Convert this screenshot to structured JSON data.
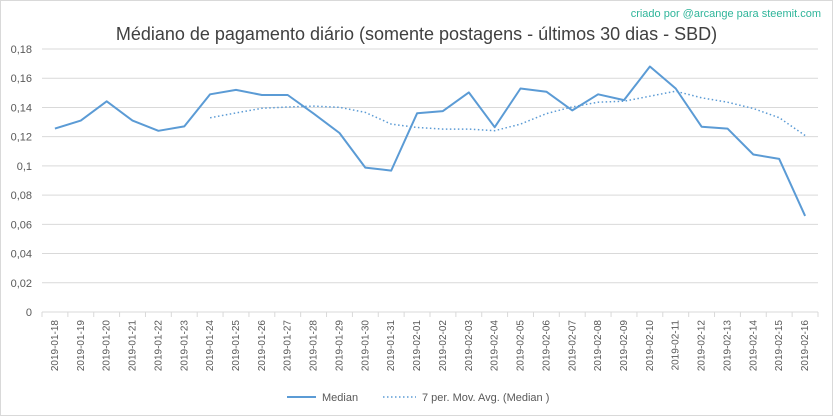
{
  "credit": "criado por @arcange para steemit.com",
  "colors": {
    "line": "#5b9bd5",
    "grid": "#d9d9d9",
    "text": "#595959",
    "credit": "#2fb59a"
  },
  "chart_data": {
    "type": "line",
    "title": "Médiano de pagamento diário (somente postagens - últimos 30 dias - SBD)",
    "xlabel": "",
    "ylabel": "",
    "ylim": [
      0,
      0.18
    ],
    "y_ticks": [
      "0",
      "0,02",
      "0,04",
      "0,06",
      "0,08",
      "0,1",
      "0,12",
      "0,14",
      "0,16",
      "0,18"
    ],
    "grid": true,
    "legend_position": "bottom",
    "categories": [
      "2019-01-18",
      "2019-01-19",
      "2019-01-20",
      "2019-01-21",
      "2019-01-22",
      "2019-01-23",
      "2019-01-24",
      "2019-01-25",
      "2019-01-26",
      "2019-01-27",
      "2019-01-28",
      "2019-01-29",
      "2019-01-30",
      "2019-01-31",
      "2019-02-01",
      "2019-02-02",
      "2019-02-03",
      "2019-02-04",
      "2019-02-05",
      "2019-02-06",
      "2019-02-07",
      "2019-02-08",
      "2019-02-09",
      "2019-02-10",
      "2019-02-11",
      "2019-02-12",
      "2019-02-13",
      "2019-02-14",
      "2019-02-15",
      "2019-02-16"
    ],
    "series": [
      {
        "name": "Median",
        "style": "solid",
        "values": [
          0.1255,
          0.131,
          0.1442,
          0.131,
          0.124,
          0.127,
          0.149,
          0.152,
          0.1485,
          0.1485,
          0.1358,
          0.1225,
          0.0988,
          0.0968,
          0.136,
          0.1375,
          0.1503,
          0.1265,
          0.153,
          0.1508,
          0.138,
          0.149,
          0.145,
          0.168,
          0.153,
          0.1268,
          0.1255,
          0.1078,
          0.1048,
          0.0658
        ]
      },
      {
        "name": "7 per. Mov. Avg. (Median )",
        "style": "dotted",
        "values": [
          null,
          null,
          null,
          null,
          null,
          null,
          0.1329,
          0.1363,
          0.1394,
          0.1403,
          0.1409,
          0.1401,
          0.1366,
          0.1286,
          0.1263,
          0.1252,
          0.1252,
          0.1241,
          0.1286,
          0.1358,
          0.1404,
          0.1436,
          0.1443,
          0.1477,
          0.1511,
          0.1466,
          0.1436,
          0.1393,
          0.133,
          0.1208
        ]
      }
    ]
  }
}
